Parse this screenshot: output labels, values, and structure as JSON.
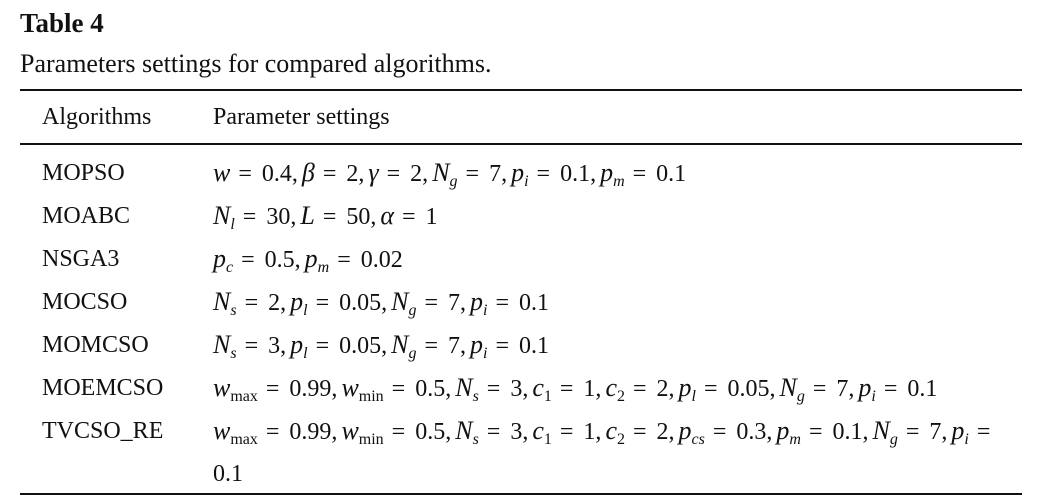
{
  "header": {
    "title": "Table 4",
    "caption": "Parameters settings for compared algorithms."
  },
  "table": {
    "columns": [
      "Algorithms",
      "Parameter settings"
    ],
    "rows": [
      {
        "algorithm": "MOPSO",
        "params": [
          {
            "symbol": "w",
            "value": "= 0.4,"
          },
          {
            "symbol": "β",
            "value": "= 2,"
          },
          {
            "symbol": "γ",
            "value": "= 2,"
          },
          {
            "symbol": "N",
            "sub": "g",
            "value": "= 7,"
          },
          {
            "symbol": "p",
            "sub": "i",
            "value": "= 0.1,"
          },
          {
            "symbol": "p",
            "sub": "m",
            "value": "= 0.1"
          }
        ]
      },
      {
        "algorithm": "MOABC",
        "params": [
          {
            "symbol": "N",
            "sub": "l",
            "value": "= 30,"
          },
          {
            "symbol": "L",
            "value": "= 50,"
          },
          {
            "symbol": "α",
            "value": "= 1"
          }
        ]
      },
      {
        "algorithm": "NSGA3",
        "params": [
          {
            "symbol": "p",
            "sub": "c",
            "value": "= 0.5,"
          },
          {
            "symbol": "p",
            "sub": "m",
            "value": "= 0.02"
          }
        ]
      },
      {
        "algorithm": "MOCSO",
        "params": [
          {
            "symbol": "N",
            "sub": "s",
            "value": "= 2,"
          },
          {
            "symbol": "p",
            "sub": "l",
            "value": "= 0.05,"
          },
          {
            "symbol": "N",
            "sub": "g",
            "value": "= 7,"
          },
          {
            "symbol": "p",
            "sub": "i",
            "value": "= 0.1"
          }
        ]
      },
      {
        "algorithm": "MOMCSO",
        "params": [
          {
            "symbol": "N",
            "sub": "s",
            "value": "= 3,"
          },
          {
            "symbol": "p",
            "sub": "l",
            "value": "= 0.05,"
          },
          {
            "symbol": "N",
            "sub": "g",
            "value": "= 7,"
          },
          {
            "symbol": "p",
            "sub": "i",
            "value": "= 0.1"
          }
        ]
      },
      {
        "algorithm": "MOEMCSO",
        "params": [
          {
            "symbol": "w",
            "sub": "max",
            "value": "= 0.99,"
          },
          {
            "symbol": "w",
            "sub": "min",
            "value": "= 0.5,"
          },
          {
            "symbol": "N",
            "sub": "s",
            "value": "= 3,"
          },
          {
            "symbol": "c",
            "sub": "1",
            "value": "= 1,"
          },
          {
            "symbol": "c",
            "sub": "2",
            "value": "= 2,"
          },
          {
            "symbol": "p",
            "sub": "l",
            "value": "= 0.05,"
          },
          {
            "symbol": "N",
            "sub": "g",
            "value": "= 7,"
          },
          {
            "symbol": "p",
            "sub": "i",
            "value": "= 0.1"
          }
        ]
      },
      {
        "algorithm": "TVCSO_RE",
        "params": [
          {
            "symbol": "w",
            "sub": "max",
            "value": "= 0.99,"
          },
          {
            "symbol": "w",
            "sub": "min",
            "value": "= 0.5,"
          },
          {
            "symbol": "N",
            "sub": "s",
            "value": "= 3,"
          },
          {
            "symbol": "c",
            "sub": "1",
            "value": "= 1,"
          },
          {
            "symbol": "c",
            "sub": "2",
            "value": "= 2,"
          },
          {
            "symbol": "p",
            "sub": "cs",
            "value": "= 0.3,"
          },
          {
            "symbol": "p",
            "sub": "m",
            "value": "= 0.1,"
          },
          {
            "symbol": "N",
            "sub": "g",
            "value": "= 7,"
          },
          {
            "symbol": "p",
            "sub": "i",
            "value": "= 0.1"
          }
        ]
      }
    ]
  }
}
